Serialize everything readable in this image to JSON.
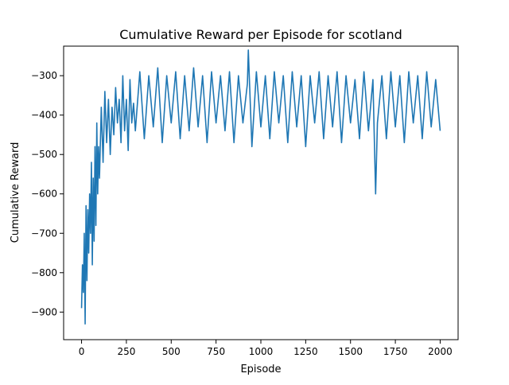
{
  "chart_data": {
    "type": "line",
    "title": "Cumulative Reward per Episode for scotland",
    "xlabel": "Episode",
    "ylabel": "Cumulative Reward",
    "xlim": [
      -100,
      2100
    ],
    "ylim": [
      -970,
      -225
    ],
    "xticks": [
      0,
      250,
      500,
      750,
      1000,
      1250,
      1500,
      1750,
      2000
    ],
    "yticks": [
      -900,
      -800,
      -700,
      -600,
      -500,
      -400,
      -300
    ],
    "grid": false,
    "legend": "none",
    "series_color": "#1f77b4",
    "series": [
      {
        "x": [
          0,
          5,
          10,
          15,
          20,
          25,
          30,
          35,
          40,
          45,
          50,
          55,
          60,
          65,
          70,
          75,
          80,
          85,
          90,
          95,
          100,
          110,
          120,
          130,
          140,
          150,
          160,
          170,
          180,
          190,
          200,
          210,
          220,
          230,
          240,
          250,
          260,
          270,
          280,
          290,
          300,
          325,
          350,
          375,
          400,
          425,
          450,
          475,
          500,
          525,
          550,
          575,
          600,
          625,
          650,
          675,
          700,
          725,
          750,
          775,
          800,
          825,
          850,
          875,
          900,
          925,
          930,
          950,
          975,
          1000,
          1025,
          1050,
          1075,
          1100,
          1125,
          1150,
          1175,
          1200,
          1225,
          1250,
          1275,
          1300,
          1325,
          1350,
          1375,
          1400,
          1425,
          1450,
          1475,
          1500,
          1525,
          1550,
          1575,
          1600,
          1625,
          1640,
          1650,
          1675,
          1700,
          1725,
          1750,
          1775,
          1800,
          1825,
          1850,
          1875,
          1900,
          1925,
          1950,
          1975,
          2000
        ],
        "values": [
          -890,
          -780,
          -850,
          -700,
          -930,
          -630,
          -820,
          -640,
          -750,
          -600,
          -700,
          -520,
          -780,
          -560,
          -720,
          -480,
          -680,
          -420,
          -600,
          -480,
          -560,
          -380,
          -520,
          -340,
          -470,
          -360,
          -500,
          -380,
          -450,
          -330,
          -420,
          -360,
          -470,
          -300,
          -440,
          -360,
          -490,
          -310,
          -420,
          -370,
          -440,
          -290,
          -460,
          -300,
          -430,
          -280,
          -470,
          -300,
          -420,
          -290,
          -460,
          -300,
          -440,
          -280,
          -430,
          -300,
          -470,
          -290,
          -420,
          -300,
          -440,
          -290,
          -470,
          -300,
          -420,
          -320,
          -235,
          -480,
          -290,
          -430,
          -300,
          -460,
          -290,
          -420,
          -300,
          -470,
          -290,
          -430,
          -300,
          -480,
          -300,
          -420,
          -290,
          -460,
          -300,
          -430,
          -290,
          -470,
          -300,
          -420,
          -310,
          -460,
          -290,
          -440,
          -310,
          -600,
          -420,
          -300,
          -460,
          -290,
          -430,
          -300,
          -470,
          -290,
          -420,
          -300,
          -460,
          -290,
          -430,
          -310,
          -440
        ]
      }
    ]
  }
}
